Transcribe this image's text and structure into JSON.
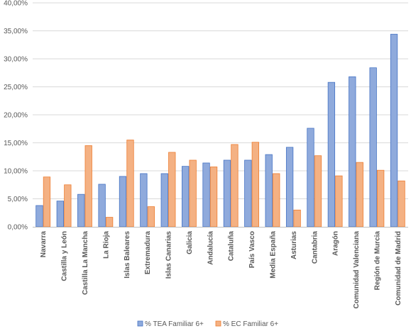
{
  "chart_data": {
    "type": "bar",
    "title": "",
    "xlabel": "",
    "ylabel": "",
    "ylim": [
      0,
      40
    ],
    "yticks": [
      "0,00%",
      "5,00%",
      "10,00%",
      "15,00%",
      "20,00%",
      "25,00%",
      "30,00%",
      "35,00%",
      "40,00%"
    ],
    "grid": true,
    "legend_position": "bottom",
    "categories": [
      "Navarra",
      "Castilla y León",
      "Castilla La Mancha",
      "La Rioja",
      "Islas Baleares",
      "Extremadura",
      "Islas Canarias",
      "Galicia",
      "Andalucía",
      "Cataluña",
      "País Vasco",
      "Media España",
      "Asturias",
      "Cantabria",
      "Aragón",
      "Comunidad Valenciana",
      "Región de Murcia",
      "Comunidad de Madrid"
    ],
    "series": [
      {
        "name": "% TEA Familiar 6+",
        "color": "#8faadc",
        "stroke": "#4472c4",
        "values": [
          3.8,
          4.6,
          5.8,
          7.6,
          9.0,
          9.5,
          9.5,
          10.8,
          11.4,
          11.9,
          11.9,
          12.9,
          14.2,
          17.6,
          25.8,
          26.8,
          28.4,
          34.4
        ]
      },
      {
        "name": "% EC Familiar 6+",
        "color": "#f4b183",
        "stroke": "#ed7d31",
        "values": [
          8.9,
          7.5,
          14.5,
          1.7,
          15.5,
          3.6,
          13.3,
          11.9,
          10.7,
          14.7,
          15.1,
          9.5,
          3.0,
          12.7,
          9.1,
          11.5,
          10.1,
          8.2
        ]
      }
    ]
  }
}
